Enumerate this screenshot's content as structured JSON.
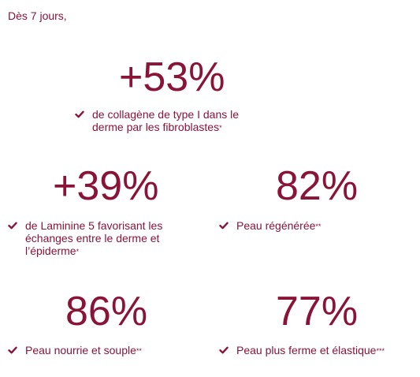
{
  "intro": "Dès 7 jours,",
  "stats": [
    {
      "number": "+53%",
      "text": "de collagène de type I dans le derme par les fibroblastes",
      "mark": "*"
    },
    {
      "number": "+39%",
      "text": "de Laminine 5 favorisant les échanges entre le derme et l’épiderme",
      "mark": "*"
    },
    {
      "number": "82%",
      "text": "Peau régénérée",
      "mark": "**"
    },
    {
      "number": "86%",
      "text": "Peau nourrie et souple",
      "mark": "**"
    },
    {
      "number": "77%",
      "text": "Peau plus ferme et élastique",
      "mark": "***"
    }
  ],
  "icons": {
    "bullet": "check-icon"
  },
  "colors": {
    "accent": "#8a1438",
    "background": "#ffffff"
  }
}
